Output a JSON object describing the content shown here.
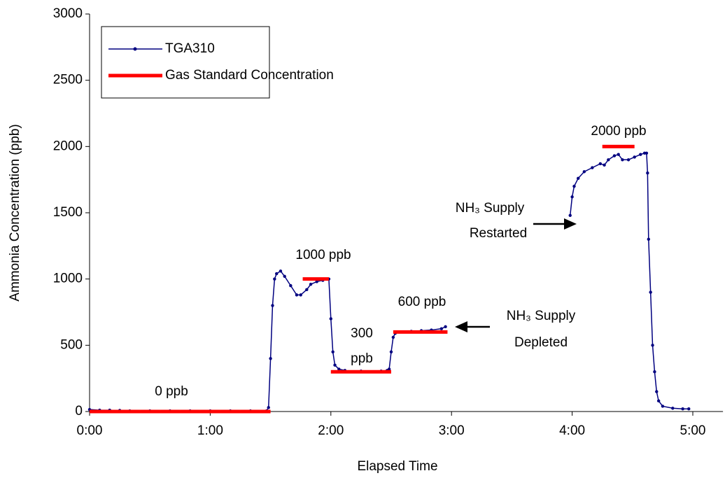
{
  "chart_data": {
    "type": "line",
    "xlabel": "Elapsed Time",
    "ylabel": "Ammonia Concentration (ppb)",
    "xlim": [
      0,
      315
    ],
    "ylim": [
      0,
      3000
    ],
    "xticks": [
      {
        "value": 0,
        "label": "0:00"
      },
      {
        "value": 60,
        "label": "1:00"
      },
      {
        "value": 120,
        "label": "2:00"
      },
      {
        "value": 180,
        "label": "3:00"
      },
      {
        "value": 240,
        "label": "4:00"
      },
      {
        "value": 300,
        "label": "5:00"
      }
    ],
    "yticks": [
      0,
      500,
      1000,
      1500,
      2000,
      2500,
      3000
    ],
    "grid": false,
    "legend": "upper left",
    "series": [
      {
        "name": "TGA310",
        "color": "#000080",
        "x": [
          0,
          5,
          10,
          15,
          20,
          30,
          40,
          50,
          60,
          70,
          80,
          88,
          89,
          90,
          91,
          92,
          93,
          95,
          97,
          100,
          103,
          105,
          108,
          110,
          113,
          116,
          118,
          119,
          120,
          121,
          122,
          124,
          127,
          130,
          135,
          140,
          145,
          148,
          149,
          150,
          151,
          152,
          154,
          160,
          165,
          170,
          175,
          177,
          200,
          239,
          240,
          241,
          243,
          246,
          250,
          254,
          256,
          258,
          261,
          263,
          265,
          268,
          271,
          274,
          276,
          277,
          277.5,
          278,
          279,
          280,
          281,
          282,
          283,
          285,
          290,
          295,
          298
        ],
        "values": [
          15,
          10,
          10,
          8,
          5,
          5,
          5,
          5,
          5,
          5,
          5,
          5,
          30,
          400,
          800,
          1000,
          1040,
          1060,
          1020,
          950,
          880,
          880,
          920,
          960,
          980,
          990,
          1000,
          1000,
          700,
          450,
          350,
          320,
          310,
          300,
          305,
          300,
          305,
          310,
          320,
          450,
          560,
          590,
          600,
          605,
          610,
          615,
          625,
          640,
          null,
          1480,
          1620,
          1700,
          1760,
          1810,
          1840,
          1870,
          1860,
          1900,
          1930,
          1940,
          1900,
          1900,
          1920,
          1940,
          1950,
          1950,
          1800,
          1300,
          900,
          500,
          300,
          150,
          80,
          40,
          25,
          20,
          20
        ]
      },
      {
        "name": "Gas Standard Concentration",
        "color": "#ff0000",
        "x": [
          0,
          90,
          95,
          106,
          119,
          119.5,
          120,
          150,
          150.5,
          151,
          178,
          200,
          255,
          271
        ],
        "values": [
          0,
          0,
          null,
          1000,
          1000,
          null,
          300,
          300,
          null,
          600,
          600,
          null,
          2000,
          2000
        ]
      }
    ],
    "annotations": [
      "0 ppb",
      "1000 ppb",
      "300",
      "ppb",
      "600 ppb",
      "2000 ppb",
      "NH₃ Supply",
      "Restarted",
      "NH₃ Supply",
      "Depleted"
    ]
  }
}
